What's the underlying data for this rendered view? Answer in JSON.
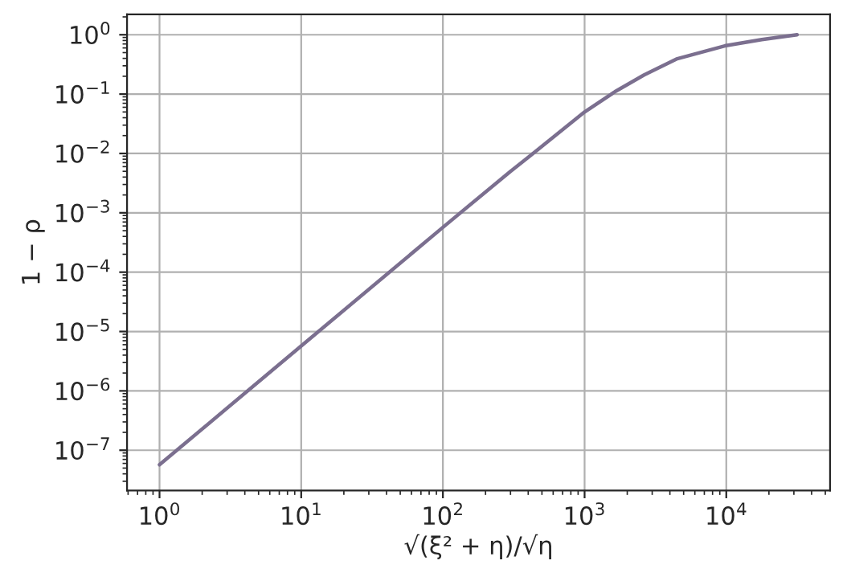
{
  "chart_data": {
    "type": "line",
    "xlabel": "√(ξ² + η)/√η",
    "ylabel": "1 − ρ",
    "x": [
      1,
      10,
      100,
      300,
      417,
      1000,
      1660,
      2630,
      4450,
      9770,
      17800,
      31600
    ],
    "series": [
      {
        "color": "#7b6f8f",
        "values": [
          5.7e-08,
          5.7e-06,
          0.00057,
          0.005,
          0.0093,
          0.05,
          0.112,
          0.21,
          0.39,
          0.65,
          0.83,
          1.0
        ]
      }
    ],
    "log": "xy",
    "grid": true,
    "line_style": "solid",
    "xlim": [
      0.59,
      54000
    ],
    "ylim": [
      2.1e-08,
      2.2
    ],
    "xticks": [
      {
        "value": 1,
        "label": "10$^{0}$"
      },
      {
        "value": 10,
        "label": "10$^{1}$"
      },
      {
        "value": 100,
        "label": "10$^{2}$"
      },
      {
        "value": 1000,
        "label": "10$^{3}$"
      },
      {
        "value": 10000,
        "label": "10$^{4}$"
      }
    ],
    "yticks": [
      {
        "value": 1e-07,
        "label": "10$^{−7}$"
      },
      {
        "value": 1e-06,
        "label": "10$^{−6}$"
      },
      {
        "value": 1e-05,
        "label": "10$^{−5}$"
      },
      {
        "value": 0.0001,
        "label": "10$^{−4}$"
      },
      {
        "value": 0.001,
        "label": "10$^{−3}$"
      },
      {
        "value": 0.01,
        "label": "10$^{−2}$"
      },
      {
        "value": 0.1,
        "label": "10$^{−1}$"
      },
      {
        "value": 1,
        "label": "10$^{0}$"
      }
    ]
  }
}
